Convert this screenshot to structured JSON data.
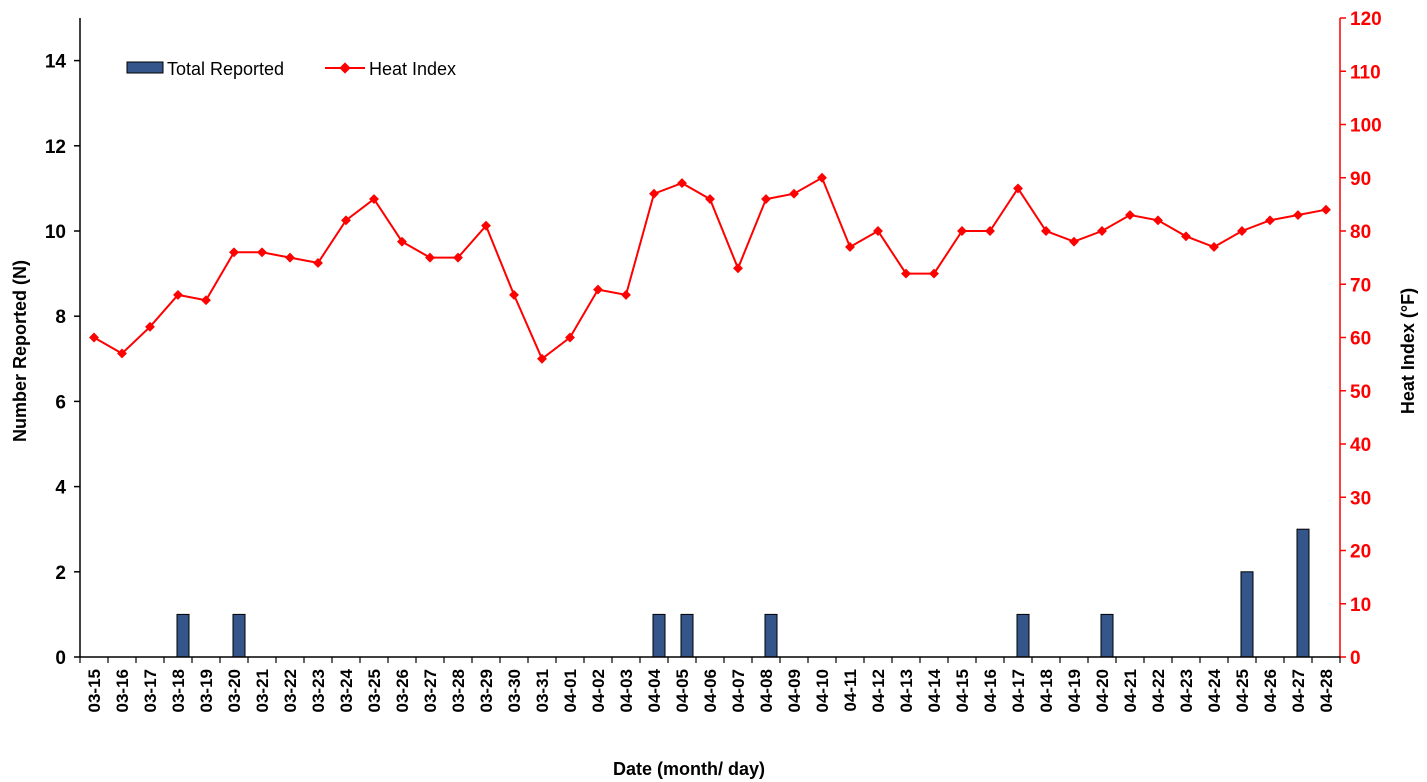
{
  "colors": {
    "bar": "#34568b",
    "bar_stroke": "#000000",
    "line": "#ff0000",
    "axis_left": "#000000",
    "axis_right": "#ff0000"
  },
  "chart_data": {
    "type": "bar+line",
    "xlabel": "Date (month/ day)",
    "ylabel": "Number Reported (N)",
    "y2label": "Heat Index (°F)",
    "ylim": [
      0,
      15
    ],
    "y2lim": [
      0,
      120
    ],
    "y_ticks": [
      0,
      2,
      4,
      6,
      8,
      10,
      12,
      14
    ],
    "y2_ticks": [
      0,
      10,
      20,
      30,
      40,
      50,
      60,
      70,
      80,
      90,
      100,
      110,
      120
    ],
    "legend_position": "top-left",
    "grid": false,
    "categories": [
      "03-15",
      "03-16",
      "03-17",
      "03-18",
      "03-19",
      "03-20",
      "03-21",
      "03-22",
      "03-23",
      "03-24",
      "03-25",
      "03-26",
      "03-27",
      "03-28",
      "03-29",
      "03-30",
      "03-31",
      "04-01",
      "04-02",
      "04-03",
      "04-04",
      "04-05",
      "04-06",
      "04-07",
      "04-08",
      "04-09",
      "04-10",
      "04-11",
      "04-12",
      "04-13",
      "04-14",
      "04-15",
      "04-16",
      "04-17",
      "04-18",
      "04-19",
      "04-20",
      "04-21",
      "04-22",
      "04-23",
      "04-24",
      "04-25",
      "04-26",
      "04-27",
      "04-28"
    ],
    "series": [
      {
        "name": "Total Reported",
        "type": "bar",
        "axis": "left",
        "values": [
          0,
          0,
          0,
          1,
          0,
          1,
          0,
          0,
          0,
          0,
          0,
          0,
          0,
          0,
          0,
          0,
          0,
          0,
          0,
          0,
          1,
          1,
          0,
          0,
          1,
          0,
          0,
          0,
          0,
          0,
          0,
          0,
          0,
          1,
          0,
          0,
          1,
          0,
          0,
          0,
          0,
          2,
          0,
          3,
          0
        ]
      },
      {
        "name": "Heat Index",
        "type": "line",
        "axis": "right",
        "values": [
          60,
          57,
          62,
          68,
          67,
          76,
          76,
          75,
          74,
          82,
          86,
          78,
          75,
          75,
          81,
          68,
          56,
          60,
          69,
          68,
          87,
          89,
          86,
          73,
          86,
          87,
          90,
          77,
          80,
          72,
          72,
          80,
          80,
          88,
          80,
          78,
          80,
          83,
          82,
          79,
          77,
          80,
          82,
          83,
          84
        ]
      }
    ]
  }
}
